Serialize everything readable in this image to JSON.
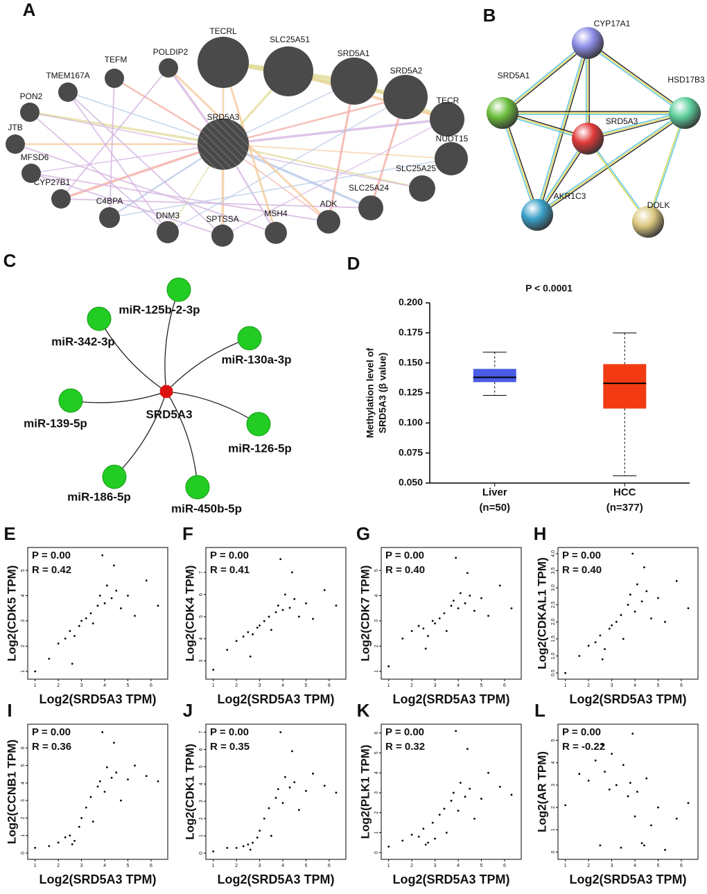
{
  "chart_data": [
    {
      "type": "network",
      "label": "A",
      "nodes": [
        "SRD5A3",
        "TECRL",
        "SLC25A51",
        "SRD5A1",
        "SRD5A2",
        "TECR",
        "NUDT15",
        "SLC25A25",
        "SLC25A24",
        "ADK",
        "MSH4",
        "SPTSSA",
        "DNM3",
        "C4BPA",
        "CYP27B1",
        "MFSD6",
        "JTB",
        "PON2",
        "TMEM167A",
        "TEFM",
        "POLDIP2"
      ]
    },
    {
      "type": "string-network",
      "label": "B",
      "nodes": [
        "CYP17A1",
        "SRD5A1",
        "HSD17B3",
        "SRD5A3",
        "AKR1C3",
        "DOLK"
      ]
    },
    {
      "type": "mirna-network",
      "label": "C",
      "center": "SRD5A3",
      "nodes": [
        "miR-125b-2-3p",
        "miR-342-3p",
        "miR-130a-3p",
        "miR-139-5p",
        "miR-126-5p",
        "miR-186-5p",
        "miR-450b-5p"
      ]
    },
    {
      "type": "box",
      "label": "D",
      "title": "P < 0.0001",
      "ylabel": [
        "Methylation level of",
        "SRD5A3 (β value)"
      ],
      "categories": [
        "Liver",
        "HCC"
      ],
      "category_counts": [
        "(n=50)",
        "(n=377)"
      ],
      "colors": [
        "#4a5ce6",
        "#f23b12"
      ],
      "min": [
        0.123,
        0.056
      ],
      "q1": [
        0.134,
        0.112
      ],
      "median": [
        0.138,
        0.133
      ],
      "q3": [
        0.145,
        0.149
      ],
      "max": [
        0.159,
        0.175
      ],
      "ylim": [
        0.05,
        0.2
      ],
      "yticks": [
        {
          "value": 0.05,
          "label": "0.050"
        },
        {
          "value": 0.075,
          "label": "0.075"
        },
        {
          "value": 0.1,
          "label": "0.100"
        },
        {
          "value": 0.125,
          "label": "0.125"
        },
        {
          "value": 0.15,
          "label": "0.150"
        },
        {
          "value": 0.175,
          "label": "0.175"
        },
        {
          "value": 0.2,
          "label": "0.200"
        }
      ]
    },
    {
      "type": "scatter",
      "label": "E",
      "annotations": [
        "P = 0.00",
        "R = 0.42"
      ],
      "xlabel": "Log2(SRD5A3 TPM)",
      "ylabel": "Log2(CDK5 TPM)",
      "xlim": [
        0.8,
        6.6
      ],
      "xticks": [
        1,
        2,
        3,
        4,
        5,
        6
      ],
      "ylim": [
        0.8,
        5.8
      ],
      "yticks": [
        1,
        2,
        3,
        4,
        5
      ],
      "x": [
        1.0,
        1.6,
        2.0,
        2.3,
        2.5,
        2.7,
        2.9,
        3.0,
        3.2,
        3.4,
        3.5,
        3.7,
        3.8,
        4.0,
        4.1,
        4.3,
        4.5,
        4.7,
        5.0,
        5.3,
        5.8,
        6.3,
        3.9,
        2.6,
        4.4
      ],
      "values": [
        1.0,
        1.5,
        2.1,
        2.3,
        2.6,
        2.4,
        2.8,
        3.0,
        3.1,
        3.3,
        2.9,
        3.6,
        4.0,
        3.7,
        4.4,
        3.9,
        4.2,
        3.5,
        4.0,
        3.2,
        4.6,
        3.6,
        5.6,
        1.3,
        5.2
      ]
    },
    {
      "type": "scatter",
      "label": "F",
      "annotations": [
        "P = 0.00",
        "R = 0.41"
      ],
      "xlabel": "Log2(SRD5A3 TPM)",
      "ylabel": "Log2(CDK4 TPM)",
      "xlim": [
        0.8,
        6.6
      ],
      "xticks": [
        1,
        2,
        3,
        4,
        5,
        6
      ],
      "ylim": [
        2.3,
        8.0
      ],
      "yticks": [
        3,
        4,
        5,
        6,
        7
      ],
      "x": [
        1.0,
        1.6,
        2.0,
        2.3,
        2.5,
        2.7,
        2.9,
        3.0,
        3.2,
        3.4,
        3.5,
        3.7,
        3.8,
        4.0,
        4.1,
        4.3,
        4.5,
        4.7,
        5.0,
        5.3,
        5.8,
        6.3,
        3.9,
        2.6,
        4.4
      ],
      "values": [
        2.6,
        3.5,
        3.9,
        4.1,
        4.3,
        4.2,
        4.5,
        4.6,
        4.8,
        5.0,
        4.4,
        5.2,
        5.5,
        5.3,
        6.0,
        5.4,
        5.8,
        5.0,
        5.6,
        4.9,
        6.2,
        5.5,
        7.6,
        3.2,
        7.0
      ]
    },
    {
      "type": "scatter",
      "label": "G",
      "annotations": [
        "P = 0.00",
        "R = 0.40"
      ],
      "xlabel": "Log2(SRD5A3 TPM)",
      "ylabel": "Log2(CDK7 TPM)",
      "xlim": [
        0.8,
        6.6
      ],
      "xticks": [
        1,
        2,
        3,
        4,
        5,
        6
      ],
      "ylim": [
        0.8,
        5.8
      ],
      "yticks": [
        1,
        2,
        3,
        4,
        5
      ],
      "x": [
        1.0,
        1.6,
        2.0,
        2.3,
        2.5,
        2.7,
        2.9,
        3.0,
        3.2,
        3.4,
        3.5,
        3.7,
        3.8,
        4.0,
        4.1,
        4.3,
        4.5,
        4.7,
        5.0,
        5.3,
        5.8,
        6.3,
        3.9,
        2.6,
        4.4
      ],
      "values": [
        1.2,
        2.3,
        2.6,
        2.8,
        2.7,
        2.4,
        3.0,
        2.9,
        3.1,
        3.3,
        2.6,
        3.6,
        3.8,
        3.5,
        4.1,
        3.7,
        4.0,
        3.4,
        3.9,
        3.2,
        4.4,
        3.5,
        5.5,
        1.9,
        4.9
      ]
    },
    {
      "type": "scatter",
      "label": "H",
      "annotations": [
        "P = 0.00",
        "R = 0.40"
      ],
      "xlabel": "Log2(SRD5A3 TPM)",
      "ylabel": "Log2(CDKAL1 TPM)",
      "xlim": [
        0.8,
        6.6
      ],
      "xticks": [
        1,
        2,
        3,
        4,
        5,
        6
      ],
      "ylim": [
        0.4,
        4.1
      ],
      "yticks": [
        0.5,
        {
          "value": 1,
          "label": "1.0"
        },
        1.5,
        {
          "value": 2,
          "label": "2.0"
        },
        2.5,
        {
          "value": 3,
          "label": "3.0"
        },
        3.5,
        {
          "value": 4,
          "label": "4.0"
        }
      ],
      "x": [
        1.0,
        1.6,
        2.0,
        2.3,
        2.5,
        2.7,
        2.9,
        3.0,
        3.2,
        3.4,
        3.5,
        3.7,
        3.8,
        4.0,
        4.1,
        4.3,
        4.5,
        4.7,
        5.0,
        5.3,
        5.8,
        6.3,
        3.9,
        2.6,
        4.4
      ],
      "values": [
        0.5,
        1.0,
        1.3,
        1.4,
        1.6,
        1.2,
        1.8,
        1.9,
        2.0,
        2.2,
        1.5,
        2.5,
        2.8,
        2.3,
        3.1,
        2.6,
        2.9,
        2.1,
        2.7,
        2.0,
        3.2,
        2.4,
        4.0,
        0.9,
        3.6
      ]
    },
    {
      "type": "scatter",
      "label": "I",
      "annotations": [
        "P = 0.00",
        "R = 0.36"
      ],
      "xlabel": "Log2(SRD5A3 TPM)",
      "ylabel": "Log2(CCNB1 TPM)",
      "xlim": [
        0.8,
        6.6
      ],
      "xticks": [
        1,
        2,
        3,
        4,
        5,
        6
      ],
      "ylim": [
        -0.2,
        7.2
      ],
      "yticks": [
        0,
        1,
        2,
        3,
        4,
        5,
        6
      ],
      "x": [
        1.0,
        1.6,
        2.0,
        2.3,
        2.5,
        2.7,
        2.9,
        3.0,
        3.2,
        3.4,
        3.5,
        3.7,
        3.8,
        4.0,
        4.1,
        4.3,
        4.5,
        4.7,
        5.0,
        5.3,
        5.8,
        6.3,
        3.9,
        2.6,
        4.4
      ],
      "values": [
        0.3,
        0.4,
        0.6,
        0.9,
        1.0,
        0.7,
        1.5,
        2.0,
        2.6,
        3.2,
        1.8,
        3.8,
        4.1,
        3.5,
        4.9,
        4.3,
        4.6,
        3.0,
        4.2,
        5.0,
        4.4,
        4.1,
        6.9,
        0.5,
        6.3
      ]
    },
    {
      "type": "scatter",
      "label": "J",
      "annotations": [
        "P = 0.00",
        "R = 0.35"
      ],
      "xlabel": "Log2(SRD5A3 TPM)",
      "ylabel": "Log2(CDK1 TPM)",
      "xlim": [
        0.8,
        6.6
      ],
      "xticks": [
        1,
        2,
        3,
        4,
        5,
        6
      ],
      "ylim": [
        -0.2,
        7.3
      ],
      "yticks": [
        0,
        1,
        2,
        3,
        4,
        5,
        6,
        7
      ],
      "x": [
        1.0,
        1.6,
        2.0,
        2.3,
        2.5,
        2.7,
        2.9,
        3.0,
        3.2,
        3.4,
        3.5,
        3.7,
        3.8,
        4.0,
        4.1,
        4.3,
        4.5,
        4.7,
        5.0,
        5.3,
        5.8,
        6.3,
        3.9,
        2.6,
        4.4
      ],
      "values": [
        0.1,
        0.3,
        0.3,
        0.4,
        0.5,
        0.6,
        0.9,
        1.3,
        2.0,
        2.6,
        1.0,
        3.2,
        3.7,
        2.9,
        4.4,
        3.8,
        4.1,
        2.5,
        3.6,
        4.6,
        3.9,
        3.5,
        7.0,
        0.2,
        5.9
      ]
    },
    {
      "type": "scatter",
      "label": "K",
      "annotations": [
        "P = 0.00",
        "R = 0.32"
      ],
      "xlabel": "Log2(SRD5A3 TPM)",
      "ylabel": "Log2(PLK1 TPM)",
      "xlim": [
        0.8,
        6.6
      ],
      "xticks": [
        1,
        2,
        3,
        4,
        5,
        6
      ],
      "ylim": [
        -0.2,
        6.3
      ],
      "yticks": [
        0,
        1,
        2,
        3,
        4,
        5,
        6
      ],
      "x": [
        1.0,
        1.6,
        2.0,
        2.3,
        2.5,
        2.7,
        2.9,
        3.0,
        3.2,
        3.4,
        3.5,
        3.7,
        3.8,
        4.0,
        4.1,
        4.3,
        4.5,
        4.7,
        5.0,
        5.3,
        5.8,
        6.3,
        3.9,
        2.6,
        4.4
      ],
      "values": [
        0.3,
        0.6,
        0.9,
        0.8,
        1.2,
        0.5,
        1.5,
        0.7,
        1.9,
        2.2,
        1.0,
        2.6,
        3.0,
        2.1,
        3.5,
        2.8,
        3.2,
        1.7,
        2.7,
        4.0,
        3.3,
        2.9,
        6.1,
        0.4,
        5.2
      ]
    },
    {
      "type": "scatter",
      "label": "L",
      "annotations": [
        "P = 0.00",
        "R = -0.22"
      ],
      "xlabel": "Log2(SRD5A3 TPM)",
      "ylabel": "Log2(AR TPM)",
      "xlim": [
        0.8,
        6.6
      ],
      "xticks": [
        1,
        2,
        3,
        4,
        5,
        6
      ],
      "ylim": [
        -0.2,
        5.6
      ],
      "yticks": [
        0,
        1,
        2,
        3,
        4,
        5
      ],
      "x": [
        1.0,
        1.6,
        2.0,
        2.3,
        2.5,
        2.7,
        2.9,
        3.0,
        3.2,
        3.4,
        3.5,
        3.7,
        3.8,
        4.0,
        4.1,
        4.3,
        4.5,
        4.7,
        5.0,
        5.3,
        5.8,
        6.3,
        3.9,
        2.6,
        4.4
      ],
      "values": [
        2.1,
        3.5,
        3.2,
        4.1,
        0.3,
        3.6,
        2.8,
        4.4,
        3.0,
        0.2,
        3.9,
        2.5,
        3.1,
        1.6,
        2.7,
        0.4,
        3.3,
        1.2,
        2.0,
        0.1,
        1.5,
        2.2,
        5.3,
        4.8,
        0.3
      ]
    }
  ]
}
